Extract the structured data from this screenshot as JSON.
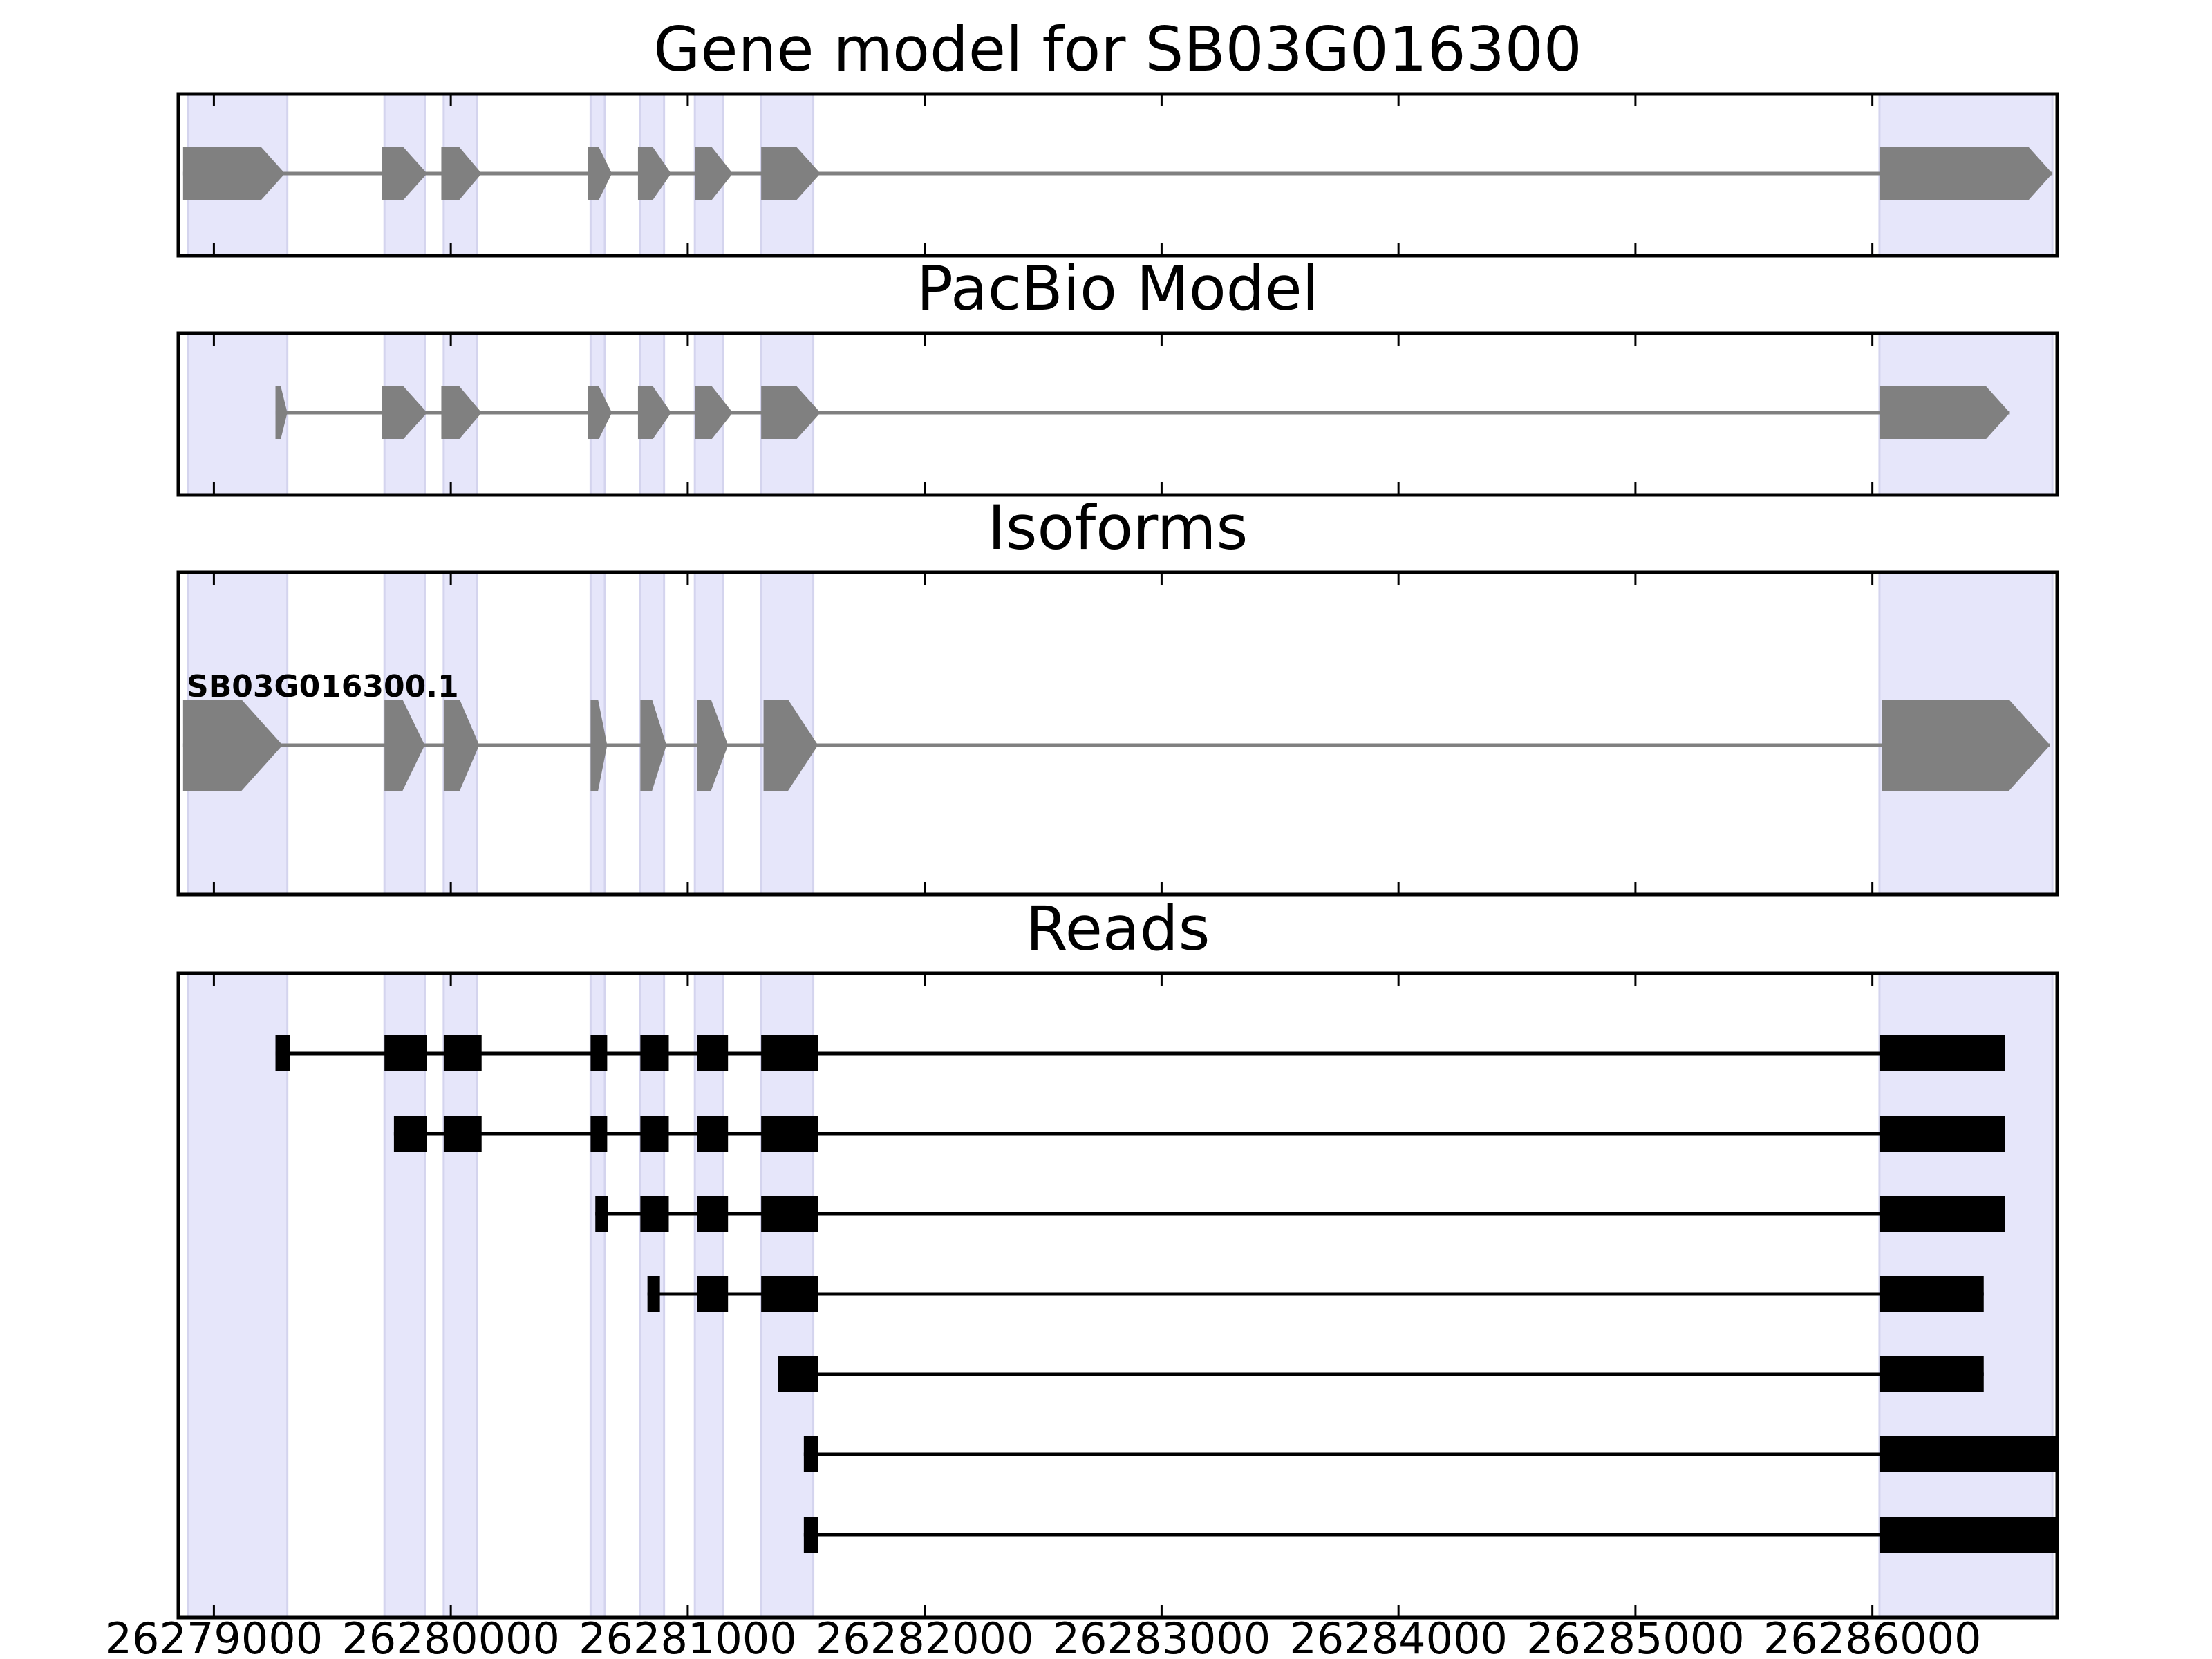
{
  "chart_data": {
    "type": "gene-structure",
    "x_range": [
      26278850,
      26286780
    ],
    "x_ticks": [
      26279000,
      26280000,
      26281000,
      26282000,
      26283000,
      26284000,
      26285000,
      26286000
    ],
    "x_tick_labels": [
      "26279000",
      "26280000",
      "26281000",
      "26282000",
      "26283000",
      "26284000",
      "26285000",
      "26286000"
    ],
    "exon_highlight_color": "#e6e6fa",
    "model_color": "#808080",
    "read_color": "#000000",
    "exon_regions": [
      [
        26278890,
        26279310
      ],
      [
        26279720,
        26279890
      ],
      [
        26279970,
        26280110
      ],
      [
        26280590,
        26280650
      ],
      [
        26280800,
        26280900
      ],
      [
        26281030,
        26281150
      ],
      [
        26281310,
        26281530
      ],
      [
        26286030,
        26286760
      ]
    ],
    "panels": [
      {
        "title": "Gene model for SB03G016300",
        "kind": "model",
        "tracks": [
          {
            "label": "",
            "exons": [
              [
                26278870,
                26279300
              ],
              [
                26279710,
                26279900
              ],
              [
                26279960,
                26280130
              ],
              [
                26280580,
                26280680
              ],
              [
                26280790,
                26280930
              ],
              [
                26281030,
                26281190
              ],
              [
                26281310,
                26281560
              ],
              [
                26286030,
                26286760
              ]
            ]
          }
        ]
      },
      {
        "title": "PacBio Model",
        "kind": "model",
        "tracks": [
          {
            "label": "",
            "exons": [
              [
                26279260,
                26279310
              ],
              [
                26279710,
                26279900
              ],
              [
                26279960,
                26280130
              ],
              [
                26280580,
                26280680
              ],
              [
                26280790,
                26280930
              ],
              [
                26281030,
                26281190
              ],
              [
                26281310,
                26281560
              ],
              [
                26286030,
                26286580
              ]
            ]
          }
        ]
      },
      {
        "title": "Isoforms",
        "kind": "isoform",
        "tracks": [
          {
            "label": "SB03G016300.1",
            "exons": [
              [
                26278870,
                26279290
              ],
              [
                26279720,
                26279890
              ],
              [
                26279970,
                26280120
              ],
              [
                26280590,
                26280660
              ],
              [
                26280800,
                26280910
              ],
              [
                26281040,
                26281170
              ],
              [
                26281320,
                26281550
              ],
              [
                26286040,
                26286750
              ]
            ]
          }
        ]
      },
      {
        "title": "Reads",
        "kind": "reads",
        "tracks": [
          {
            "exons": [
              [
                26279260,
                26279320
              ],
              [
                26279720,
                26279900
              ],
              [
                26279970,
                26280130
              ],
              [
                26280590,
                26280660
              ],
              [
                26280800,
                26280920
              ],
              [
                26281040,
                26281170
              ],
              [
                26281310,
                26281550
              ],
              [
                26286030,
                26286560
              ]
            ]
          },
          {
            "exons": [
              [
                26279760,
                26279900
              ],
              [
                26279970,
                26280130
              ],
              [
                26280590,
                26280660
              ],
              [
                26280800,
                26280920
              ],
              [
                26281040,
                26281170
              ],
              [
                26281310,
                26281550
              ],
              [
                26286030,
                26286560
              ]
            ]
          },
          {
            "exons": [
              [
                26280610,
                26280650
              ],
              [
                26280800,
                26280920
              ],
              [
                26281040,
                26281170
              ],
              [
                26281310,
                26281550
              ],
              [
                26286030,
                26286560
              ]
            ]
          },
          {
            "exons": [
              [
                26280830,
                26280870
              ],
              [
                26281040,
                26281170
              ],
              [
                26281310,
                26281550
              ],
              [
                26286030,
                26286470
              ]
            ]
          },
          {
            "exons": [
              [
                26281380,
                26281550
              ],
              [
                26286030,
                26286470
              ]
            ]
          },
          {
            "exons": [
              [
                26281490,
                26281550
              ],
              [
                26286030,
                26286780
              ]
            ]
          },
          {
            "exons": [
              [
                26281490,
                26281550
              ],
              [
                26286030,
                26286780
              ]
            ]
          }
        ]
      }
    ]
  }
}
